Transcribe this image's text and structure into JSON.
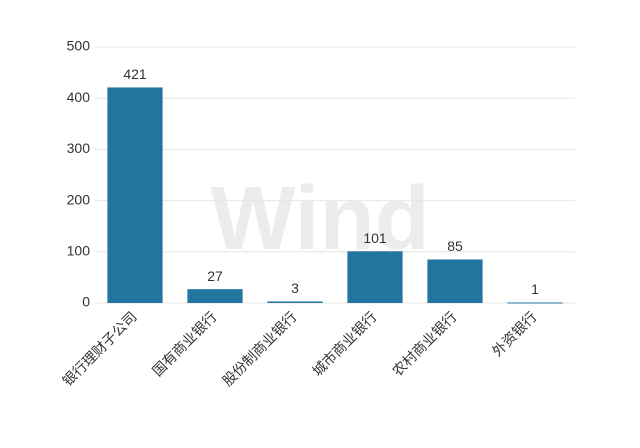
{
  "chart_data": {
    "type": "bar",
    "watermark": "Wind",
    "categories": [
      "银行理财子公司",
      "国有商业银行",
      "股份制商业银行",
      "城市商业银行",
      "农村商业银行",
      "外资银行"
    ],
    "values": [
      421,
      27,
      3,
      101,
      85,
      1
    ],
    "color": "#21759f",
    "ylim": [
      0,
      500
    ],
    "yticks": [
      0,
      100,
      200,
      300,
      400,
      500
    ],
    "grid": true
  }
}
